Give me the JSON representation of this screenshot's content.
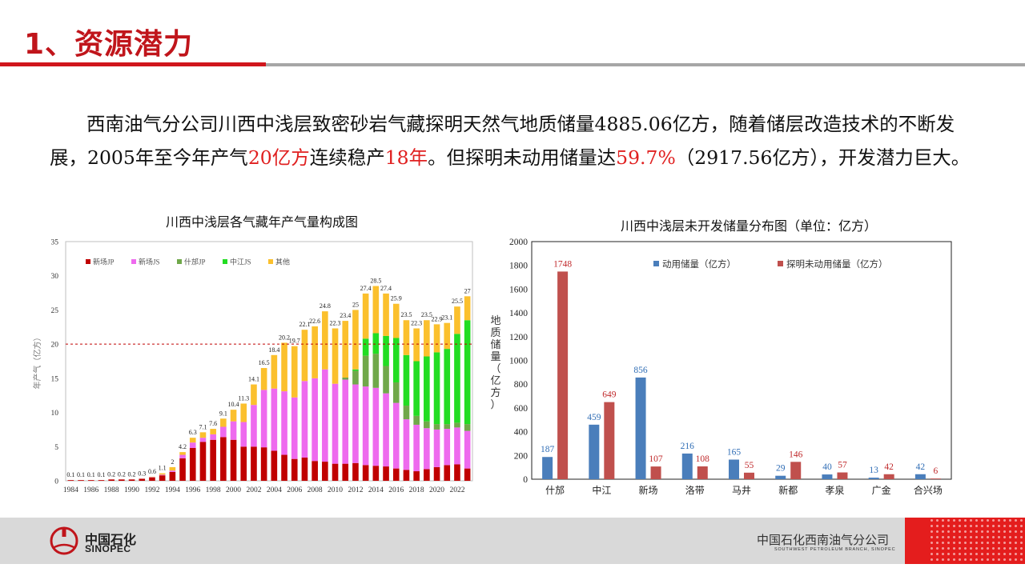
{
  "header": {
    "title": "1、资源潜力"
  },
  "intro": {
    "p1": "西南油气分公司川西中浅层致密砂岩气藏探明天然气地质储量",
    "n1": "4885.06",
    "p2": "亿方，随着储层改造技术的不断发展，",
    "n2": "2005",
    "p3": "年至今年产气",
    "r1": "20亿方",
    "p4": "连续稳产",
    "r2": "18年",
    "p5": "。但探明未动用储量达",
    "r3": "59.7%",
    "p6": "（",
    "n3": "2917.56",
    "p7": "亿方），开发潜力巨大。"
  },
  "footer": {
    "brand_cn": "中国石化",
    "brand_en": "SINOPEC",
    "company_cn": "中国石化西南油气分公司",
    "company_en": "SOUTHWEST PETROLEUM BRANCH, SINOPEC"
  },
  "chart_data": [
    {
      "type": "bar",
      "stacked": true,
      "title": "川西中浅层各气藏年产气量构成图",
      "ylabel": "年产气（亿方）",
      "xlabel": "",
      "ylim": [
        0,
        35
      ],
      "yticks": [
        0,
        5,
        10,
        15,
        20,
        25,
        30,
        35
      ],
      "reference_line": 20,
      "legend_position": "top-left",
      "categories": [
        "1984",
        "1985",
        "1986",
        "1987",
        "1988",
        "1989",
        "1990",
        "1991",
        "1992",
        "1993",
        "1994",
        "1995",
        "1996",
        "1997",
        "1998",
        "1999",
        "2000",
        "2001",
        "2002",
        "2003",
        "2004",
        "2005",
        "2006",
        "2007",
        "2008",
        "2009",
        "2010",
        "2011",
        "2012",
        "2013",
        "2014",
        "2015",
        "2016",
        "2017",
        "2018",
        "2019",
        "2020",
        "2021",
        "2022",
        "2023"
      ],
      "xtick_labels": [
        "1984",
        "1986",
        "1988",
        "1990",
        "1992",
        "1994",
        "1996",
        "1998",
        "2000",
        "2002",
        "2004",
        "2006",
        "2008",
        "2010",
        "2012",
        "2014",
        "2016",
        "2018",
        "2020",
        "2022"
      ],
      "totals": [
        0.1,
        0.1,
        0.1,
        0.1,
        0.2,
        0.2,
        0.2,
        0.3,
        0.6,
        1.1,
        2.0,
        4.2,
        6.3,
        7.1,
        7.6,
        9.1,
        10.4,
        11.3,
        14.1,
        16.5,
        18.4,
        20.2,
        19.7,
        22.1,
        22.6,
        24.8,
        22.3,
        23.4,
        25.0,
        27.4,
        28.5,
        27.4,
        25.9,
        23.5,
        22.3,
        23.5,
        22.9,
        23.1,
        25.5,
        27.0
      ],
      "series": [
        {
          "name": "新场JP",
          "color": "#c00000",
          "values": [
            0.1,
            0.1,
            0.1,
            0.1,
            0.2,
            0.2,
            0.2,
            0.3,
            0.5,
            0.8,
            1.3,
            3.3,
            4.8,
            5.7,
            6.0,
            6.4,
            6.0,
            5.0,
            5.0,
            4.9,
            4.4,
            3.8,
            3.2,
            3.4,
            2.9,
            2.8,
            2.5,
            2.5,
            2.6,
            2.3,
            2.2,
            2.1,
            1.8,
            1.6,
            1.4,
            1.7,
            2.0,
            2.3,
            2.4,
            1.8
          ]
        },
        {
          "name": "新场JS",
          "color": "#ee6aee",
          "values": [
            0,
            0,
            0,
            0,
            0,
            0,
            0,
            0,
            0.05,
            0.1,
            0.2,
            0.5,
            0.8,
            0.6,
            0.8,
            1.5,
            2.7,
            3.6,
            6.1,
            8.4,
            9.1,
            9.3,
            9.0,
            11.2,
            12.1,
            13.5,
            11.7,
            12.3,
            11.5,
            11.5,
            11.4,
            10.7,
            9.6,
            7.4,
            6.8,
            6.0,
            5.5,
            5.3,
            5.4,
            5.5
          ]
        },
        {
          "name": "什邡JP",
          "color": "#70a84a",
          "values": [
            0,
            0,
            0,
            0,
            0,
            0,
            0,
            0,
            0,
            0,
            0,
            0,
            0,
            0,
            0,
            0,
            0,
            0,
            0,
            0,
            0,
            0,
            0,
            0,
            0,
            0,
            0,
            0.3,
            2.0,
            4.5,
            5.0,
            4.0,
            3.0,
            2.0,
            1.3,
            1.0,
            0.8,
            0.7,
            0.7,
            1.0
          ]
        },
        {
          "name": "中江JS",
          "color": "#22dd22",
          "values": [
            0,
            0,
            0,
            0,
            0,
            0,
            0,
            0,
            0,
            0,
            0,
            0,
            0,
            0,
            0,
            0,
            0,
            0,
            0,
            0,
            0,
            0,
            0,
            0,
            0,
            0,
            0,
            0,
            0.2,
            2.5,
            3.0,
            4.4,
            6.5,
            7.4,
            8.0,
            9.5,
            10.5,
            11.0,
            13.0,
            15.2
          ]
        },
        {
          "name": "其他",
          "color": "#fbc02d",
          "values": [
            0,
            0,
            0,
            0,
            0,
            0,
            0,
            0,
            0.05,
            0.2,
            0.5,
            0.4,
            0.7,
            0.8,
            0.8,
            1.2,
            1.7,
            2.7,
            3.0,
            3.2,
            4.9,
            7.1,
            7.5,
            7.5,
            7.6,
            8.5,
            8.1,
            8.3,
            8.7,
            6.6,
            6.9,
            6.2,
            5.0,
            5.1,
            4.8,
            5.3,
            4.1,
            3.8,
            4.0,
            3.5
          ]
        }
      ]
    },
    {
      "type": "bar",
      "title": "川西中浅层未开发储量分布图（单位：亿方）",
      "ylabel": "地质储量（亿方）",
      "xlabel": "",
      "ylim": [
        0,
        2000
      ],
      "yticks": [
        0,
        200,
        400,
        600,
        800,
        1000,
        1200,
        1400,
        1600,
        1800,
        2000
      ],
      "legend_position": "top",
      "categories": [
        "什邡",
        "中江",
        "新场",
        "洛带",
        "马井",
        "新都",
        "孝泉",
        "广金",
        "合兴场"
      ],
      "series": [
        {
          "name": "动用储量（亿方）",
          "color": "#4a7ebb",
          "label_color": "#2f6db5",
          "values": [
            187,
            459,
            856,
            216,
            165,
            29,
            40,
            13,
            42
          ]
        },
        {
          "name": "探明未动用储量（亿方）",
          "color": "#c0504d",
          "label_color": "#c0292b",
          "values": [
            1748,
            649,
            107,
            108,
            55,
            146,
            57,
            42,
            6
          ]
        }
      ]
    }
  ]
}
